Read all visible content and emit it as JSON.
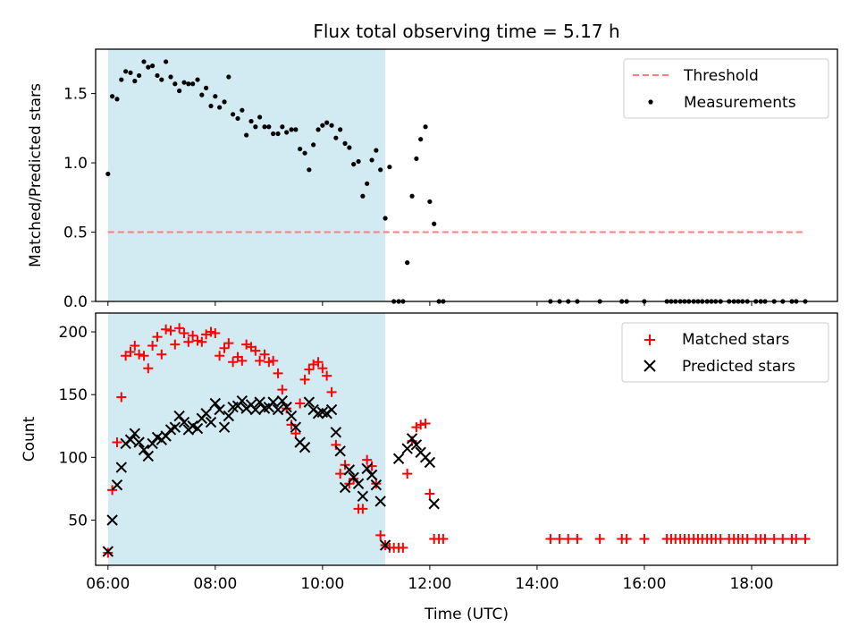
{
  "title": "Flux total observing time = 5.17 h",
  "colors": {
    "threshold": "#ff7f7f",
    "measurement": "#000000",
    "matched": "#ff0000",
    "predicted": "#000000",
    "observing_span": "#add8e6"
  },
  "chart_data": [
    {
      "type": "scatter",
      "ylabel": "Matched/Predicted stars",
      "xlim": [
        5.77,
        19.6
      ],
      "ylim": [
        0,
        1.82
      ],
      "yticks": [
        0.0,
        0.5,
        1.0,
        1.5
      ],
      "ytick_labels": [
        "0.0",
        "0.5",
        "1.0",
        "1.5"
      ],
      "shaded_span": [
        6.0,
        11.17
      ],
      "legend": {
        "position": "upper right",
        "entries": [
          "Threshold",
          "Measurements"
        ]
      },
      "threshold": {
        "name": "Threshold",
        "y": 0.5,
        "x": [
          6.0,
          19.0
        ]
      },
      "series": [
        {
          "name": "Measurements",
          "x": [
            6.0,
            6.08,
            6.17,
            6.25,
            6.33,
            6.42,
            6.5,
            6.58,
            6.67,
            6.75,
            6.83,
            6.92,
            7.0,
            7.08,
            7.17,
            7.25,
            7.33,
            7.42,
            7.5,
            7.58,
            7.67,
            7.75,
            7.83,
            7.92,
            8.0,
            8.08,
            8.17,
            8.25,
            8.33,
            8.42,
            8.5,
            8.58,
            8.67,
            8.75,
            8.83,
            8.92,
            9.0,
            9.08,
            9.17,
            9.25,
            9.33,
            9.42,
            9.5,
            9.58,
            9.67,
            9.75,
            9.83,
            9.92,
            10.0,
            10.08,
            10.17,
            10.25,
            10.33,
            10.42,
            10.5,
            10.58,
            10.67,
            10.75,
            10.83,
            10.92,
            11.0,
            11.08,
            11.17,
            11.25,
            11.33,
            11.42,
            11.5,
            11.58,
            11.67,
            11.75,
            11.83,
            11.92,
            12.0,
            12.08,
            12.17,
            12.25,
            14.25,
            14.42,
            14.58,
            14.75,
            15.17,
            15.58,
            15.67,
            16.0,
            16.42,
            16.5,
            16.58,
            16.67,
            16.75,
            16.83,
            16.92,
            17.0,
            17.08,
            17.17,
            17.25,
            17.33,
            17.42,
            17.58,
            17.67,
            17.75,
            17.83,
            17.92,
            18.08,
            18.17,
            18.25,
            18.42,
            18.58,
            18.75,
            18.83,
            19.0
          ],
          "y": [
            0.92,
            1.48,
            1.46,
            1.6,
            1.66,
            1.65,
            1.59,
            1.63,
            1.73,
            1.69,
            1.7,
            1.63,
            1.6,
            1.73,
            1.62,
            1.57,
            1.52,
            1.58,
            1.57,
            1.57,
            1.6,
            1.49,
            1.54,
            1.41,
            1.48,
            1.4,
            1.44,
            1.62,
            1.35,
            1.32,
            1.38,
            1.2,
            1.3,
            1.26,
            1.33,
            1.26,
            1.26,
            1.21,
            1.21,
            1.26,
            1.22,
            1.24,
            1.24,
            1.1,
            1.07,
            0.95,
            1.13,
            1.24,
            1.27,
            1.29,
            1.27,
            1.18,
            1.24,
            1.14,
            1.11,
            0.99,
            1.01,
            0.76,
            0.85,
            1.02,
            1.09,
            0.95,
            0.6,
            0.97,
            0.0,
            0.0,
            0.0,
            0.28,
            0.76,
            1.03,
            1.17,
            1.26,
            0.72,
            0.56,
            0.0,
            0.0,
            0.0,
            0.0,
            0.0,
            0.0,
            0.0,
            0.0,
            0.0,
            0.0,
            0.0,
            0.0,
            0.0,
            0.0,
            0.0,
            0.0,
            0.0,
            0.0,
            0.0,
            0.0,
            0.0,
            0.0,
            0.0,
            0.0,
            0.0,
            0.0,
            0.0,
            0.0,
            0.0,
            0.0,
            0.0,
            0.0,
            0.0,
            0.0,
            0.0,
            0.0
          ]
        }
      ]
    },
    {
      "type": "scatter",
      "xlabel": "Time (UTC)",
      "ylabel": "Count",
      "xlim": [
        5.77,
        19.6
      ],
      "ylim": [
        14,
        215
      ],
      "yticks": [
        50,
        100,
        150,
        200
      ],
      "ytick_labels": [
        "50",
        "100",
        "150",
        "200"
      ],
      "xticks": [
        6,
        8,
        10,
        12,
        14,
        16,
        18
      ],
      "xtick_labels": [
        "06:00",
        "08:00",
        "10:00",
        "12:00",
        "14:00",
        "16:00",
        "18:00"
      ],
      "shaded_span": [
        6.0,
        11.17
      ],
      "legend": {
        "position": "upper right",
        "entries": [
          "Matched stars",
          "Predicted stars"
        ]
      },
      "series": [
        {
          "name": "Matched stars",
          "marker": "+",
          "x": [
            6.0,
            6.08,
            6.17,
            6.25,
            6.33,
            6.42,
            6.5,
            6.58,
            6.67,
            6.75,
            6.83,
            6.92,
            7.0,
            7.08,
            7.17,
            7.25,
            7.33,
            7.42,
            7.5,
            7.58,
            7.67,
            7.75,
            7.83,
            7.92,
            8.0,
            8.08,
            8.17,
            8.25,
            8.33,
            8.42,
            8.5,
            8.58,
            8.67,
            8.75,
            8.83,
            8.92,
            9.0,
            9.08,
            9.17,
            9.25,
            9.33,
            9.42,
            9.5,
            9.58,
            9.67,
            9.75,
            9.83,
            9.92,
            10.0,
            10.08,
            10.17,
            10.25,
            10.33,
            10.42,
            10.5,
            10.58,
            10.67,
            10.75,
            10.83,
            10.92,
            11.0,
            11.08,
            11.17,
            11.25,
            11.33,
            11.42,
            11.5,
            11.58,
            11.67,
            11.75,
            11.83,
            11.92,
            12.0,
            12.08,
            12.17,
            12.25,
            14.25,
            14.42,
            14.58,
            14.75,
            15.17,
            15.58,
            15.67,
            16.0,
            16.42,
            16.5,
            16.58,
            16.67,
            16.75,
            16.83,
            16.92,
            17.0,
            17.08,
            17.17,
            17.25,
            17.33,
            17.42,
            17.58,
            17.67,
            17.75,
            17.83,
            17.92,
            18.08,
            18.17,
            18.25,
            18.42,
            18.58,
            18.75,
            18.83,
            19.0
          ],
          "y": [
            24,
            74,
            112,
            148,
            181,
            184,
            189,
            182,
            181,
            171,
            189,
            196,
            182,
            202,
            201,
            190,
            203,
            199,
            192,
            197,
            193,
            192,
            198,
            200,
            199,
            181,
            187,
            191,
            176,
            180,
            177,
            190,
            188,
            185,
            177,
            182,
            176,
            177,
            167,
            154,
            139,
            126,
            119,
            143,
            162,
            170,
            174,
            176,
            171,
            165,
            152,
            110,
            87,
            94,
            79,
            83,
            59,
            59,
            98,
            93,
            79,
            38,
            30,
            28,
            28,
            28,
            28,
            87,
            113,
            124,
            126,
            127,
            71,
            35,
            35,
            35,
            35,
            35,
            35,
            35,
            35,
            35,
            35,
            35,
            35,
            35,
            35,
            35,
            35,
            35,
            35,
            35,
            35,
            35,
            35,
            35,
            35,
            35,
            35,
            35,
            35,
            35,
            35,
            35,
            35,
            35,
            35,
            35,
            35,
            35
          ]
        },
        {
          "name": "Predicted stars",
          "marker": "x",
          "x": [
            6.0,
            6.08,
            6.17,
            6.25,
            6.33,
            6.42,
            6.5,
            6.58,
            6.67,
            6.75,
            6.83,
            6.92,
            7.0,
            7.08,
            7.17,
            7.25,
            7.33,
            7.42,
            7.5,
            7.58,
            7.67,
            7.75,
            7.83,
            7.92,
            8.0,
            8.08,
            8.17,
            8.25,
            8.33,
            8.42,
            8.5,
            8.58,
            8.67,
            8.75,
            8.83,
            8.92,
            9.0,
            9.08,
            9.17,
            9.25,
            9.33,
            9.42,
            9.5,
            9.58,
            9.67,
            9.75,
            9.83,
            9.92,
            10.0,
            10.08,
            10.17,
            10.25,
            10.33,
            10.42,
            10.5,
            10.58,
            10.67,
            10.75,
            10.83,
            10.92,
            11.0,
            11.08,
            11.17,
            11.42,
            11.58,
            11.67,
            11.75,
            11.83,
            11.92,
            12.0,
            12.08
          ],
          "y": [
            25,
            50,
            78,
            92,
            111,
            114,
            119,
            112,
            106,
            101,
            111,
            116,
            114,
            117,
            122,
            124,
            133,
            128,
            122,
            125,
            123,
            131,
            135,
            128,
            143,
            138,
            124,
            133,
            140,
            141,
            145,
            139,
            142,
            138,
            144,
            139,
            140,
            144,
            138,
            145,
            140,
            133,
            124,
            112,
            108,
            144,
            138,
            135,
            136,
            135,
            138,
            120,
            105,
            76,
            90,
            84,
            79,
            69,
            91,
            86,
            78,
            65,
            30,
            99,
            107,
            115,
            110,
            104,
            100,
            96,
            63
          ]
        }
      ]
    }
  ]
}
